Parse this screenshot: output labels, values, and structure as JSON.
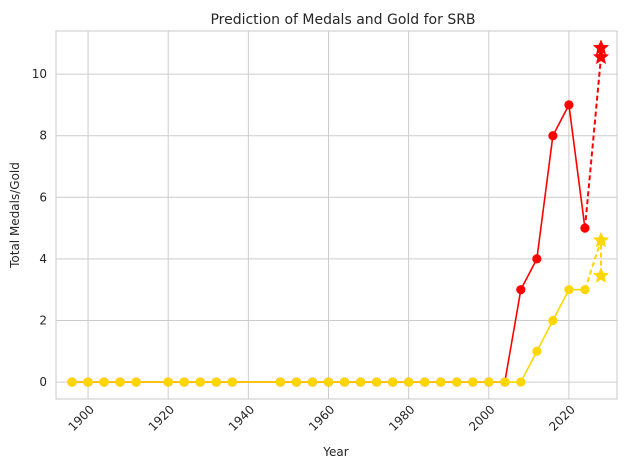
{
  "chart_data": {
    "type": "line",
    "title": "Prediction of Medals and Gold for SRB",
    "xlabel": "Year",
    "ylabel": "Total Medals/Gold",
    "xlim": [
      1892,
      2032
    ],
    "ylim": [
      -0.55,
      11.4
    ],
    "xticks": [
      1900,
      1920,
      1940,
      1960,
      1980,
      2000,
      2020
    ],
    "yticks": [
      0,
      2,
      4,
      6,
      8,
      10
    ],
    "grid": true,
    "series": [
      {
        "color": "#ff0000",
        "marker": "circle",
        "style": "solid",
        "points": [
          [
            1896,
            0
          ],
          [
            1900,
            0
          ],
          [
            1904,
            0
          ],
          [
            1908,
            0
          ],
          [
            1912,
            0
          ],
          [
            1920,
            0
          ],
          [
            1924,
            0
          ],
          [
            1928,
            0
          ],
          [
            1932,
            0
          ],
          [
            1936,
            0
          ],
          [
            1948,
            0
          ],
          [
            1952,
            0
          ],
          [
            1956,
            0
          ],
          [
            1960,
            0
          ],
          [
            1964,
            0
          ],
          [
            1968,
            0
          ],
          [
            1972,
            0
          ],
          [
            1976,
            0
          ],
          [
            1980,
            0
          ],
          [
            1984,
            0
          ],
          [
            1988,
            0
          ],
          [
            1992,
            0
          ],
          [
            1996,
            0
          ],
          [
            2000,
            0
          ],
          [
            2004,
            0
          ],
          [
            2008,
            3
          ],
          [
            2012,
            4
          ],
          [
            2016,
            8
          ],
          [
            2020,
            9
          ],
          [
            2024,
            5
          ]
        ]
      },
      {
        "color": "#ffd700",
        "marker": "circle",
        "style": "solid",
        "points": [
          [
            1896,
            0
          ],
          [
            1900,
            0
          ],
          [
            1904,
            0
          ],
          [
            1908,
            0
          ],
          [
            1912,
            0
          ],
          [
            1920,
            0
          ],
          [
            1924,
            0
          ],
          [
            1928,
            0
          ],
          [
            1932,
            0
          ],
          [
            1936,
            0
          ],
          [
            1948,
            0
          ],
          [
            1952,
            0
          ],
          [
            1956,
            0
          ],
          [
            1960,
            0
          ],
          [
            1964,
            0
          ],
          [
            1968,
            0
          ],
          [
            1972,
            0
          ],
          [
            1976,
            0
          ],
          [
            1980,
            0
          ],
          [
            1984,
            0
          ],
          [
            1988,
            0
          ],
          [
            1992,
            0
          ],
          [
            1996,
            0
          ],
          [
            2000,
            0
          ],
          [
            2004,
            0
          ],
          [
            2008,
            0
          ],
          [
            2012,
            1
          ],
          [
            2016,
            2
          ],
          [
            2020,
            3
          ],
          [
            2024,
            3
          ]
        ]
      },
      {
        "color": "#ff0000",
        "marker": "star",
        "style": "dashed",
        "points": [
          [
            2024,
            5
          ],
          [
            2028,
            10.55
          ],
          [
            2028,
            10.85
          ]
        ],
        "marked": [
          1,
          2
        ]
      },
      {
        "color": "#ffd700",
        "marker": "star",
        "style": "dashed",
        "points": [
          [
            2024,
            3
          ],
          [
            2028,
            4.6
          ],
          [
            2028,
            3.45
          ]
        ],
        "marked": [
          1,
          2
        ]
      }
    ]
  }
}
